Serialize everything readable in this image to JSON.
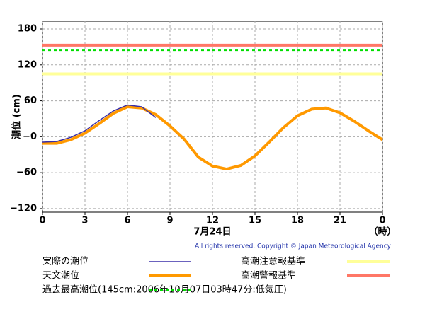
{
  "chart_data": {
    "type": "line",
    "y_label": "潮位 (cm)",
    "x_label": "7月24日",
    "x_unit": "（時）",
    "copyright": "All rights reserved. Copyright © Japan Meteorological Agency",
    "x": [
      0,
      1,
      2,
      3,
      4,
      5,
      6,
      7,
      8,
      9,
      10,
      11,
      12,
      13,
      14,
      15,
      16,
      17,
      18,
      19,
      20,
      21,
      22,
      23,
      24
    ],
    "series": [
      {
        "name": "実際の潮位",
        "color": "#3a2fa8",
        "width": 1.5,
        "values": [
          -9,
          -8,
          -1,
          10,
          27,
          43,
          53,
          50,
          32,
          null,
          null,
          null,
          null,
          null,
          null,
          null,
          null,
          null,
          null,
          null,
          null,
          null,
          null,
          null,
          null
        ]
      },
      {
        "name": "天文潮位",
        "color": "#ff9900",
        "width": 4,
        "values": [
          -11,
          -11,
          -5,
          6,
          22,
          39,
          50,
          48,
          37,
          18,
          -4,
          -34,
          -49,
          -54,
          -48,
          -32,
          -9,
          15,
          35,
          46,
          48,
          40,
          26,
          10,
          -5
        ]
      }
    ],
    "reference_lines": [
      {
        "name": "高潮注意報基準",
        "value": 105,
        "color": "#ffff99",
        "dashed": false
      },
      {
        "name": "高潮警報基準",
        "value": 153,
        "color": "#ff7766",
        "dashed": false
      },
      {
        "name": "過去最高潮位(145cm:2006年10月07日03時47分:低気圧)",
        "value": 145,
        "color": "#00dd00",
        "dashed": true
      }
    ],
    "xlim": [
      0,
      24
    ],
    "xticks": [
      0,
      3,
      6,
      9,
      12,
      15,
      18,
      21,
      {
        "value": 24,
        "label": "0"
      }
    ],
    "ylim": [
      -126,
      193
    ],
    "yticks": [
      {
        "value": -120,
        "label": "−120"
      },
      {
        "value": -60,
        "label": "−60"
      },
      {
        "value": 0,
        "label": "−0"
      },
      60,
      120,
      180
    ],
    "grid": true
  }
}
